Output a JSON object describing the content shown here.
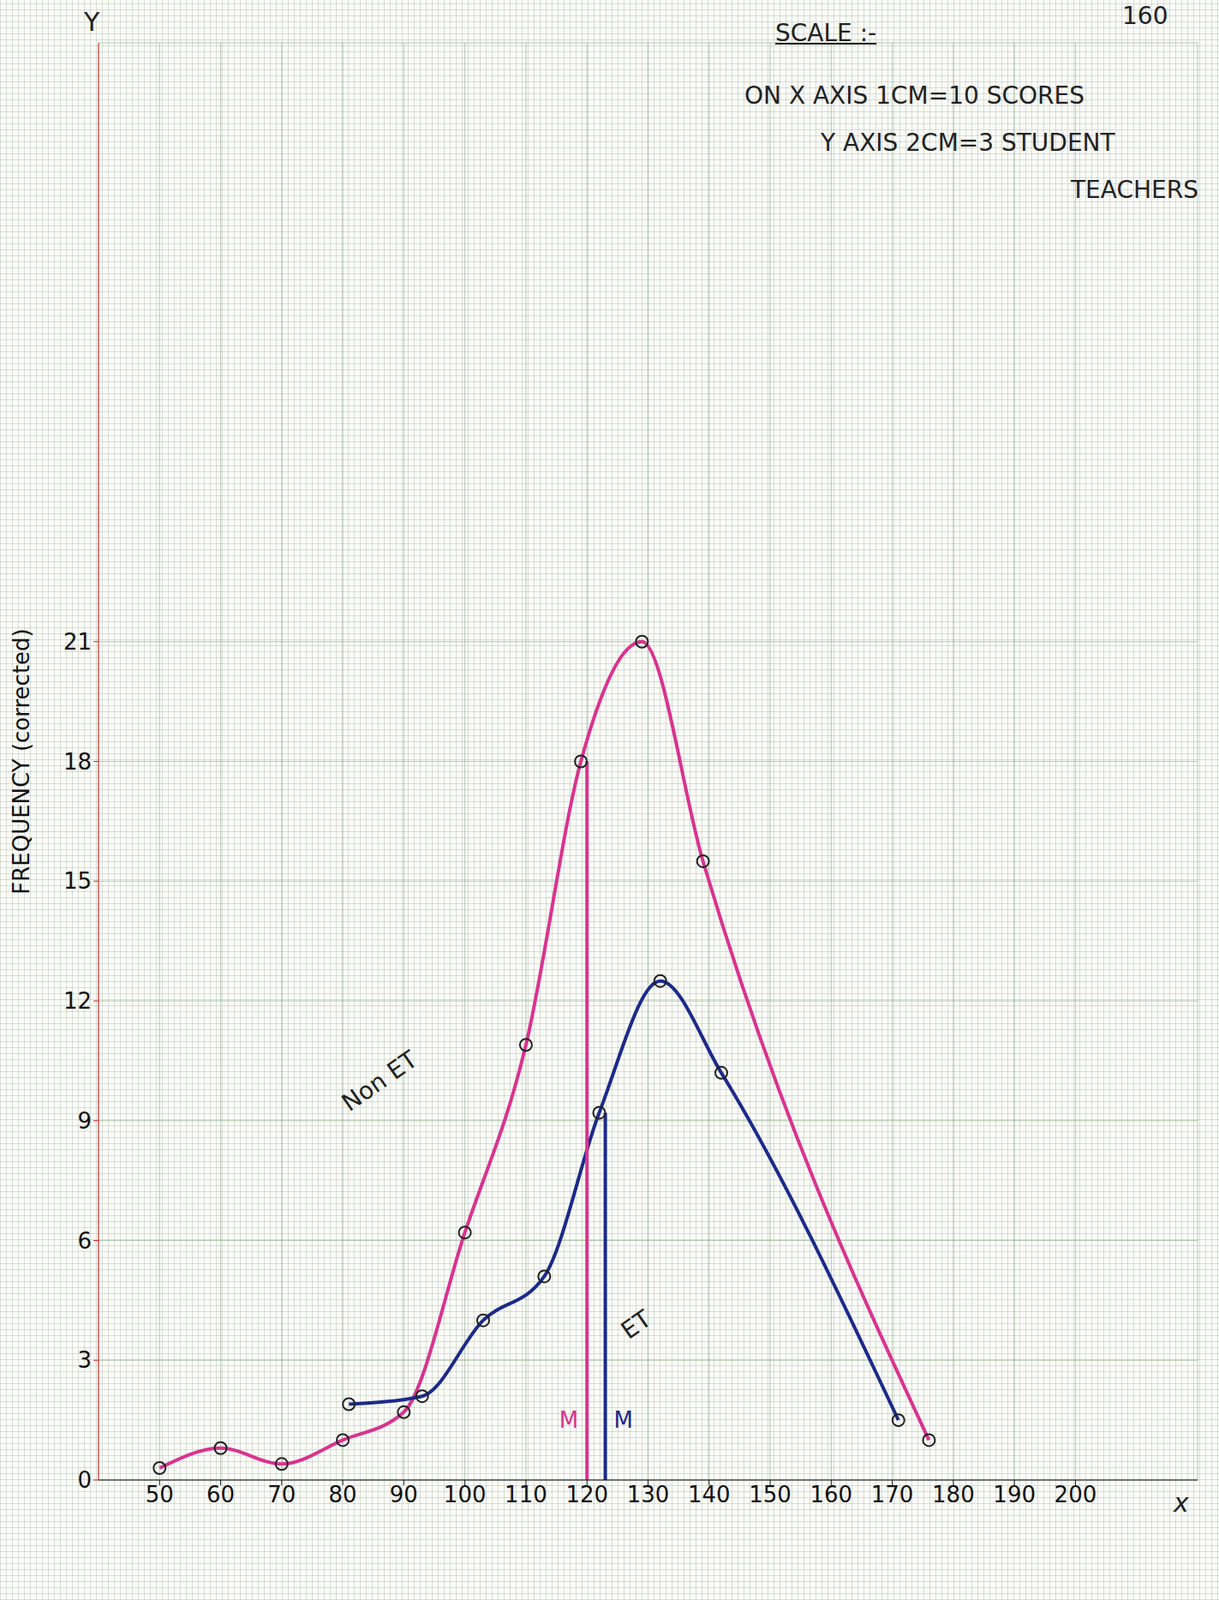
{
  "chart_data": {
    "type": "line",
    "annotations": [
      "160",
      "SCALE :-",
      "ON X AXIS 1CM=10 SCORES",
      "Y AXIS 2CM=3 STUDENT",
      "TEACHERS"
    ],
    "xlabel": "x",
    "ylabel": "FREQUENCY (corrected)",
    "y_axis_end_label": "Y",
    "xlim": [
      40,
      220
    ],
    "xticks": [
      50,
      60,
      70,
      80,
      90,
      100,
      110,
      120,
      130,
      140,
      150,
      160,
      170,
      180,
      190,
      200
    ],
    "ylim": [
      0,
      36
    ],
    "yticks": [
      0,
      3,
      6,
      9,
      12,
      15,
      18,
      21
    ],
    "grid": true,
    "series": [
      {
        "name": "Non ET",
        "color": "#d9338f",
        "marker": "circle",
        "line_style": "smooth",
        "x": [
          50,
          60,
          70,
          80,
          90,
          100,
          110,
          119,
          129,
          139,
          176
        ],
        "values": [
          0.3,
          0.8,
          0.4,
          1,
          1.7,
          6.2,
          10.9,
          18,
          21,
          15.5,
          1
        ],
        "label_at": {
          "x": 86,
          "y": 10
        }
      },
      {
        "name": "ET",
        "color": "#1c2a8a",
        "marker": "circle",
        "line_style": "smooth",
        "x": [
          81,
          93,
          103,
          113,
          122,
          132,
          142,
          171
        ],
        "values": [
          1.9,
          2.1,
          4,
          5.1,
          9.2,
          12.5,
          10.2,
          1.5
        ],
        "label_at": {
          "x": 128,
          "y": 3.9
        }
      }
    ],
    "medians": [
      {
        "series": "Non ET",
        "label": "M",
        "x": 120,
        "y": 18,
        "label_y": 1.5
      },
      {
        "series": "ET",
        "label": "M",
        "x": 123,
        "y": 9.2,
        "label_y": 1.5
      }
    ]
  }
}
